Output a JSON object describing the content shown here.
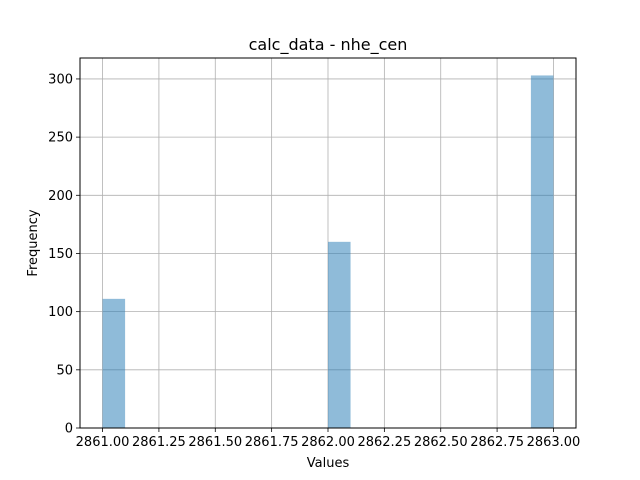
{
  "chart_data": {
    "type": "bar",
    "title": "calc_data - nhe_cen",
    "xlabel": "Values",
    "ylabel": "Frequency",
    "grid": true,
    "xlim": [
      2860.9,
      2863.1
    ],
    "ylim": [
      0,
      318
    ],
    "x_ticks": [
      2861.0,
      2861.25,
      2861.5,
      2861.75,
      2862.0,
      2862.25,
      2862.5,
      2862.75,
      2863.0
    ],
    "x_tick_labels": [
      "2861.00",
      "2861.25",
      "2861.50",
      "2861.75",
      "2862.00",
      "2862.25",
      "2862.50",
      "2862.75",
      "2863.00"
    ],
    "y_ticks": [
      0,
      50,
      100,
      150,
      200,
      250,
      300
    ],
    "y_tick_labels": [
      "0",
      "50",
      "100",
      "150",
      "200",
      "250",
      "300"
    ],
    "bin_width": 0.1,
    "bins": [
      {
        "x_start": 2861.0,
        "x_end": 2861.1,
        "value": 111
      },
      {
        "x_start": 2862.0,
        "x_end": 2862.1,
        "value": 160
      },
      {
        "x_start": 2862.9,
        "x_end": 2863.0,
        "value": 303
      }
    ],
    "bar_color": "#1f77b4",
    "bar_opacity": 0.5
  }
}
